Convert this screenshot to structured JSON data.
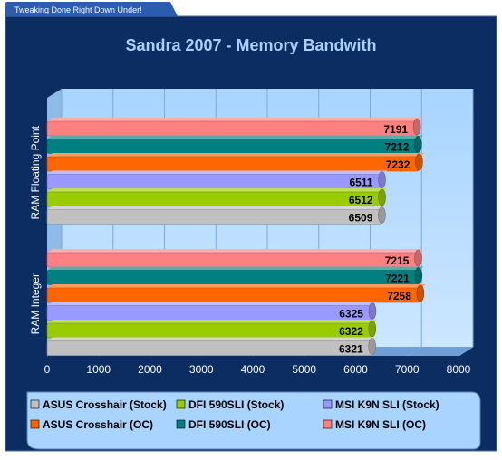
{
  "tagline": "Tweaking Done Right Down Under!",
  "chart_data": {
    "type": "bar",
    "orientation": "horizontal",
    "title": "Sandra 2007 - Memory Bandwith",
    "categories": [
      "RAM Floating Point",
      "RAM Integer"
    ],
    "series": [
      {
        "name": "ASUS Crosshair (Stock)",
        "color": "#c0c0c0",
        "values": [
          6509,
          6321
        ]
      },
      {
        "name": "DFI 590SLI (Stock)",
        "color": "#99cc00",
        "values": [
          6512,
          6322
        ]
      },
      {
        "name": "MSI K9N SLI (Stock)",
        "color": "#9999ff",
        "values": [
          6511,
          6325
        ]
      },
      {
        "name": "ASUS Crosshair (OC)",
        "color": "#ff6600",
        "values": [
          7232,
          7258
        ]
      },
      {
        "name": "DFI 590SLI (OC)",
        "color": "#008080",
        "values": [
          7212,
          7221
        ]
      },
      {
        "name": "MSI K9N SLI (OC)",
        "color": "#ff8080",
        "values": [
          7191,
          7215
        ]
      }
    ],
    "xlim": [
      0,
      8000
    ],
    "xticks": [
      "0",
      "1000",
      "2000",
      "3000",
      "4000",
      "5000",
      "6000",
      "7000",
      "8000"
    ],
    "grid": true,
    "legend_position": "bottom"
  }
}
